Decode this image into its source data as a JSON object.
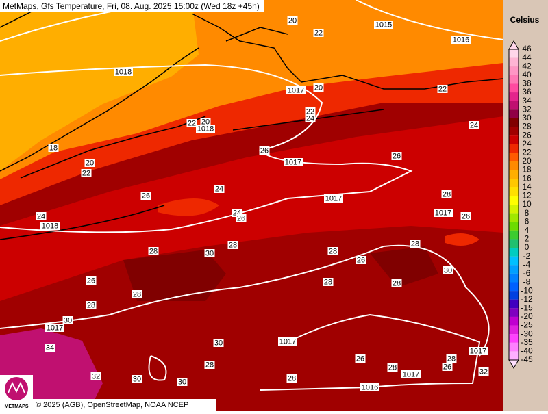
{
  "header": {
    "title": "MetMaps, Gfs Temperature, Fri, 08. Aug. 2025 15:00z (Wed 18z +45h)"
  },
  "legend": {
    "unit": "Celsius",
    "steps": [
      {
        "value": 46,
        "color": "#ffd6ea"
      },
      {
        "value": 44,
        "color": "#ffb4d4"
      },
      {
        "value": 42,
        "color": "#ff96c4"
      },
      {
        "value": 40,
        "color": "#ff78b4"
      },
      {
        "value": 38,
        "color": "#ff4aa0"
      },
      {
        "value": 36,
        "color": "#e4248c"
      },
      {
        "value": 34,
        "color": "#c01070"
      },
      {
        "value": 32,
        "color": "#900046"
      },
      {
        "value": 30,
        "color": "#800000"
      },
      {
        "value": 28,
        "color": "#a00000"
      },
      {
        "value": 26,
        "color": "#cc0000"
      },
      {
        "value": 24,
        "color": "#ee2800"
      },
      {
        "value": 22,
        "color": "#ff5a00"
      },
      {
        "value": 20,
        "color": "#ff8a00"
      },
      {
        "value": 18,
        "color": "#ffae00"
      },
      {
        "value": 16,
        "color": "#ffc800"
      },
      {
        "value": 14,
        "color": "#ffe000"
      },
      {
        "value": 12,
        "color": "#ffff00"
      },
      {
        "value": 10,
        "color": "#d4f400"
      },
      {
        "value": 8,
        "color": "#a0e800"
      },
      {
        "value": 6,
        "color": "#6cdc00"
      },
      {
        "value": 4,
        "color": "#3ccc30"
      },
      {
        "value": 2,
        "color": "#20c070"
      },
      {
        "value": 0,
        "color": "#00ccc0"
      },
      {
        "value": -2,
        "color": "#00c0ff"
      },
      {
        "value": -4,
        "color": "#00a0ff"
      },
      {
        "value": -6,
        "color": "#0080ff"
      },
      {
        "value": -8,
        "color": "#0060ff"
      },
      {
        "value": -10,
        "color": "#0040e0"
      },
      {
        "value": -12,
        "color": "#4000c0"
      },
      {
        "value": -15,
        "color": "#8000c0"
      },
      {
        "value": -20,
        "color": "#c000d0"
      },
      {
        "value": -25,
        "color": "#e020e0"
      },
      {
        "value": -30,
        "color": "#ff40ff"
      },
      {
        "value": -35,
        "color": "#ff80ff"
      },
      {
        "value": -40,
        "color": "#ffb0ff"
      },
      {
        "value": -45,
        "color": "#ffe0ff"
      }
    ]
  },
  "map": {
    "labels": [
      "20",
      "22",
      "1015",
      "1016",
      "1018",
      "1017",
      "20",
      "22",
      "22",
      "24",
      "22",
      "20",
      "1018",
      "18",
      "26",
      "1017",
      "26",
      "20",
      "22",
      "24",
      "24",
      "26",
      "1017",
      "28",
      "24",
      "26",
      "1017",
      "26",
      "24",
      "1018",
      "28",
      "30",
      "28",
      "28",
      "26",
      "28",
      "30",
      "26",
      "28",
      "28",
      "28",
      "28",
      "30",
      "1017",
      "34",
      "30",
      "1017",
      "28",
      "26",
      "28",
      "28",
      "26",
      "1017",
      "1017",
      "32",
      "32",
      "30",
      "30",
      "28",
      "1016"
    ]
  },
  "footer": {
    "copyright": "© 2025 (AGB), OpenStreetMap, NOAA NCEP",
    "logo": "METMAPS"
  }
}
